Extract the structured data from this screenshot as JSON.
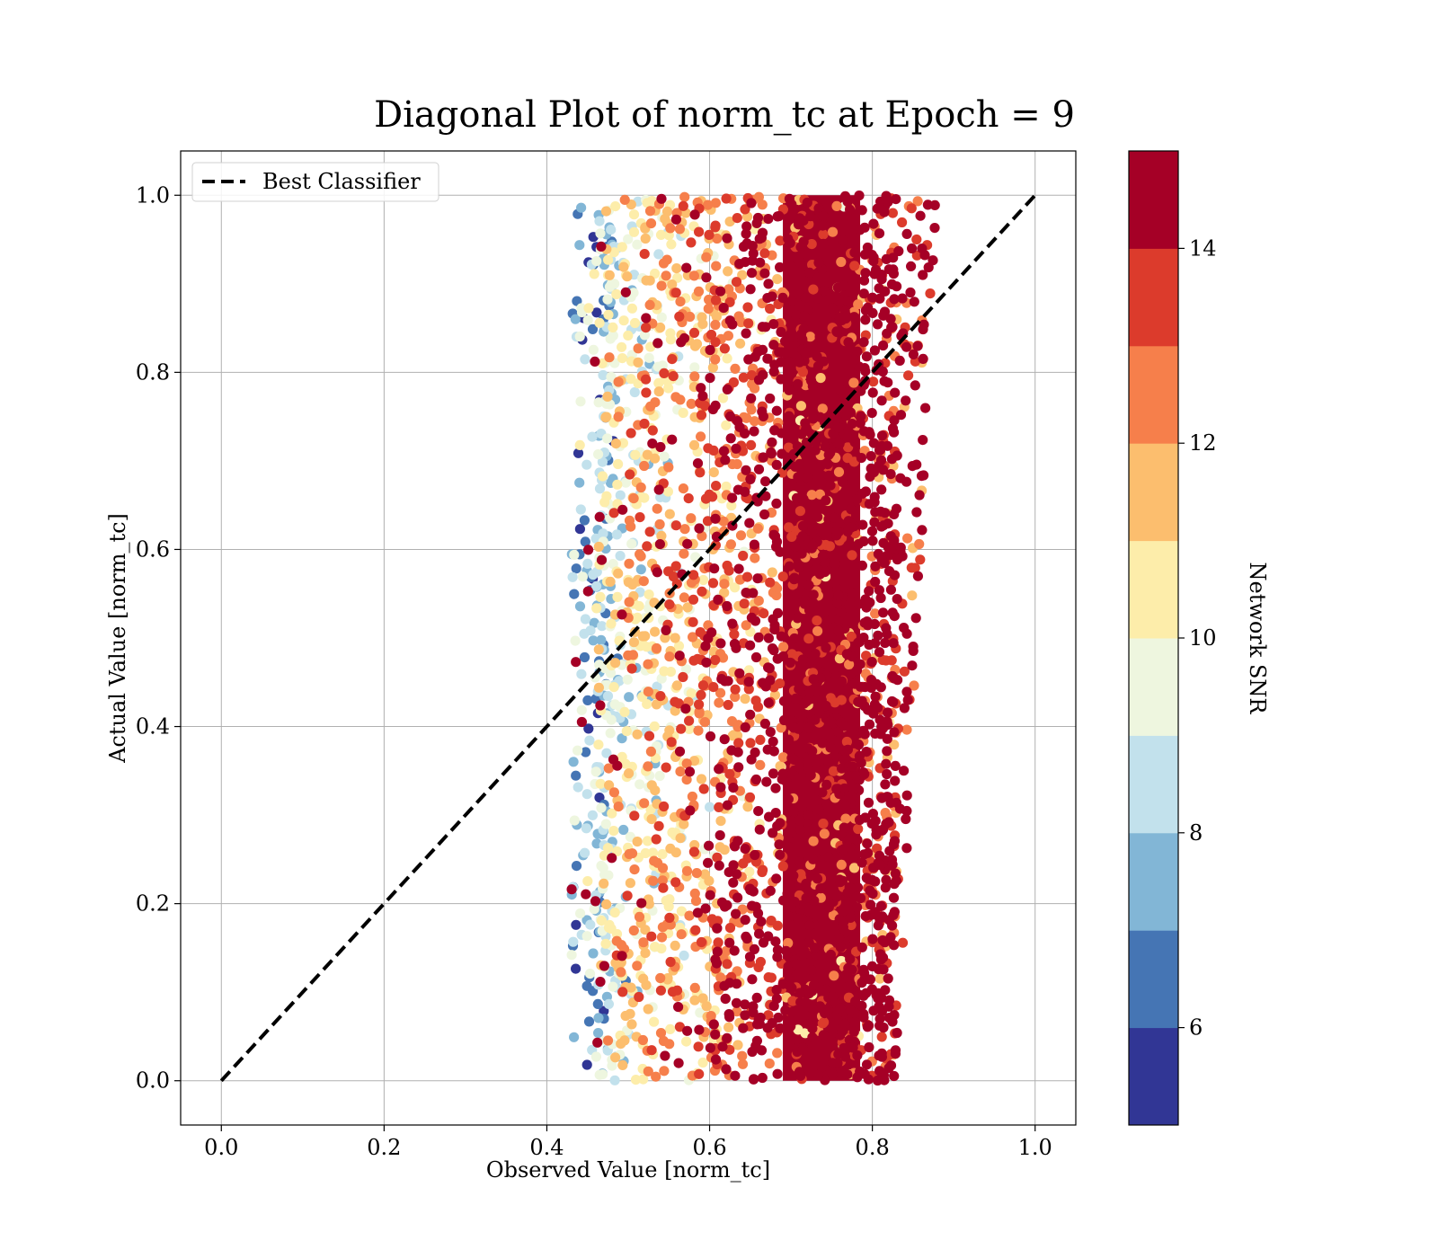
{
  "chart_data": {
    "type": "scatter",
    "title": "Diagonal Plot of norm_tc at Epoch = 9",
    "xlabel": "Observed Value [norm_tc]",
    "ylabel": "Actual Value [norm_tc]",
    "xlim": [
      -0.05,
      1.05
    ],
    "ylim": [
      -0.05,
      1.05
    ],
    "xticks": [
      "0.0",
      "0.2",
      "0.4",
      "0.6",
      "0.8",
      "1.0"
    ],
    "yticks": [
      "0.0",
      "0.2",
      "0.4",
      "0.6",
      "0.8",
      "1.0"
    ],
    "grid": true,
    "legend": {
      "position": "upper-left",
      "entries": [
        {
          "label": "Best Classifier",
          "style": "dashed",
          "color": "#000000"
        }
      ]
    },
    "reference_line": {
      "name": "Best Classifier",
      "x": [
        0.0,
        1.0
      ],
      "y": [
        0.0,
        1.0
      ],
      "style": "dashed",
      "color": "#000000"
    },
    "scatter_summary": {
      "x_range": [
        0.43,
        0.89
      ],
      "y_range": [
        0.0,
        1.0
      ],
      "approx_points_shown": 3000,
      "color_by": "Network SNR",
      "snr_by_observed_value": [
        {
          "x": 0.45,
          "snr_center": 7.5
        },
        {
          "x": 0.47,
          "snr_center": 9.0
        },
        {
          "x": 0.5,
          "snr_center": 10.5
        },
        {
          "x": 0.55,
          "snr_center": 11.5
        },
        {
          "x": 0.6,
          "snr_center": 12.5
        },
        {
          "x": 0.64,
          "snr_center": 13.5
        },
        {
          "x": 0.68,
          "snr_center": 14.5
        },
        {
          "x": 0.8,
          "snr_center": 15.0
        },
        {
          "x": 0.87,
          "snr_center": 15.0
        }
      ]
    },
    "colorbar": {
      "label": "Network SNR",
      "min": 5,
      "max": 15,
      "ticks": [
        "6",
        "8",
        "10",
        "12",
        "14"
      ],
      "bins": [
        {
          "from": 5,
          "to": 6,
          "color": "#313695"
        },
        {
          "from": 6,
          "to": 7,
          "color": "#4575b4"
        },
        {
          "from": 7,
          "to": 8,
          "color": "#82b6d6"
        },
        {
          "from": 8,
          "to": 9,
          "color": "#c2e1ec"
        },
        {
          "from": 9,
          "to": 10,
          "color": "#eef6df"
        },
        {
          "from": 10,
          "to": 11,
          "color": "#fdedaa"
        },
        {
          "from": 11,
          "to": 12,
          "color": "#fcbe6e"
        },
        {
          "from": 12,
          "to": 13,
          "color": "#f67f4b"
        },
        {
          "from": 13,
          "to": 14,
          "color": "#dc3b2c"
        },
        {
          "from": 14,
          "to": 15,
          "color": "#a50026"
        }
      ]
    }
  }
}
